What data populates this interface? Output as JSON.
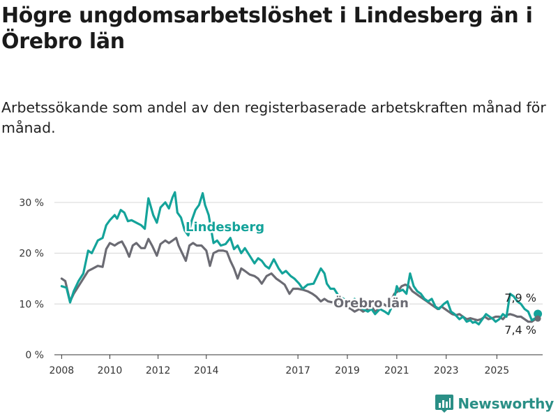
{
  "title": "Högre ungdomsarbetslöshet i Lindesberg än i Örebro län",
  "subtitle": "Arbetssökande som andel av den registerbaserade arbetskraften månad för månad.",
  "brand": "Newsworthy",
  "colors": {
    "lindesberg": "#14a39a",
    "orebro": "#6b6b73",
    "grid": "#d6d6d6",
    "brand": "#2a8f86"
  },
  "chart_data": {
    "type": "line",
    "x_ticks": [
      "2008",
      "2010",
      "2012",
      "2014",
      "2017",
      "2019",
      "2021",
      "2023",
      "2025"
    ],
    "y_ticks": [
      "0 %",
      "10 %",
      "20 %",
      "30 %"
    ],
    "ylim": [
      0,
      33
    ],
    "grid": true,
    "series": [
      {
        "name": "Lindesberg",
        "color": "#14a39a",
        "end_label": "7,9 %",
        "points": [
          [
            2008.0,
            13.5
          ],
          [
            2008.2,
            13.2
          ],
          [
            2008.35,
            10.3
          ],
          [
            2008.5,
            12.5
          ],
          [
            2008.7,
            14.5
          ],
          [
            2008.9,
            16.0
          ],
          [
            2009.1,
            20.5
          ],
          [
            2009.25,
            20.0
          ],
          [
            2009.5,
            22.5
          ],
          [
            2009.7,
            23.0
          ],
          [
            2009.85,
            25.5
          ],
          [
            2010.0,
            26.5
          ],
          [
            2010.2,
            27.5
          ],
          [
            2010.3,
            26.8
          ],
          [
            2010.45,
            28.5
          ],
          [
            2010.6,
            28.0
          ],
          [
            2010.75,
            26.3
          ],
          [
            2010.9,
            26.5
          ],
          [
            2011.1,
            26.0
          ],
          [
            2011.3,
            25.5
          ],
          [
            2011.45,
            24.8
          ],
          [
            2011.6,
            30.8
          ],
          [
            2011.8,
            27.5
          ],
          [
            2011.95,
            26.0
          ],
          [
            2012.1,
            29.0
          ],
          [
            2012.3,
            30.0
          ],
          [
            2012.45,
            28.8
          ],
          [
            2012.6,
            31.0
          ],
          [
            2012.7,
            32.0
          ],
          [
            2012.8,
            28.0
          ],
          [
            2012.95,
            27.0
          ],
          [
            2013.1,
            24.5
          ],
          [
            2013.25,
            23.5
          ],
          [
            2013.4,
            26.5
          ],
          [
            2013.55,
            28.5
          ],
          [
            2013.7,
            29.5
          ],
          [
            2013.85,
            31.8
          ],
          [
            2013.95,
            29.5
          ],
          [
            2014.1,
            27.5
          ],
          [
            2014.3,
            22.0
          ],
          [
            2014.45,
            22.5
          ],
          [
            2014.6,
            21.5
          ],
          [
            2014.8,
            21.8
          ],
          [
            2015.0,
            23.0
          ],
          [
            2015.15,
            20.8
          ],
          [
            2015.3,
            21.5
          ],
          [
            2015.45,
            20.0
          ],
          [
            2015.6,
            21.0
          ],
          [
            2015.8,
            19.5
          ],
          [
            2016.0,
            18.0
          ],
          [
            2016.15,
            19.0
          ],
          [
            2016.3,
            18.5
          ],
          [
            2016.45,
            17.5
          ],
          [
            2016.6,
            17.0
          ],
          [
            2016.8,
            18.8
          ],
          [
            2017.0,
            17.0
          ],
          [
            2017.15,
            16.0
          ],
          [
            2017.3,
            16.5
          ],
          [
            2017.5,
            15.5
          ],
          [
            2017.65,
            15.0
          ],
          [
            2017.85,
            14.0
          ],
          [
            2018.0,
            13.0
          ],
          [
            2018.2,
            13.8
          ],
          [
            2018.45,
            14.0
          ],
          [
            2018.6,
            15.5
          ],
          [
            2018.75,
            17.0
          ],
          [
            2018.9,
            16.0
          ],
          [
            2019.0,
            14.0
          ],
          [
            2019.15,
            13.0
          ],
          [
            2019.3,
            13.0
          ],
          [
            2019.5,
            11.5
          ],
          [
            2019.7,
            11.0
          ],
          [
            2019.85,
            10.5
          ],
          [
            2020.0,
            10.0
          ],
          [
            2020.15,
            11.0
          ],
          [
            2020.35,
            9.5
          ],
          [
            2020.5,
            9.0
          ],
          [
            2020.7,
            8.5
          ],
          [
            2020.85,
            9.0
          ],
          [
            2021.0,
            8.0
          ],
          [
            2021.2,
            9.0
          ],
          [
            2021.4,
            8.5
          ],
          [
            2021.55,
            8.0
          ],
          [
            2021.75,
            10.0
          ],
          [
            2021.9,
            13.5
          ],
          [
            2022.0,
            12.5
          ],
          [
            2022.15,
            12.8
          ],
          [
            2022.3,
            12.0
          ],
          [
            2022.45,
            16.0
          ],
          [
            2022.6,
            13.5
          ],
          [
            2022.75,
            12.5
          ],
          [
            2022.9,
            12.0
          ],
          [
            2023.05,
            11.0
          ],
          [
            2023.2,
            10.5
          ],
          [
            2023.35,
            11.0
          ],
          [
            2023.5,
            9.5
          ],
          [
            2023.65,
            9.0
          ],
          [
            2023.85,
            10.0
          ],
          [
            2024.0,
            10.5
          ],
          [
            2024.15,
            8.5
          ],
          [
            2024.3,
            8.0
          ],
          [
            2024.5,
            7.0
          ],
          [
            2024.65,
            7.5
          ],
          [
            2024.8,
            6.5
          ],
          [
            2024.95,
            6.8
          ],
          [
            2025.05,
            6.3
          ],
          [
            2025.15,
            6.5
          ],
          [
            2025.3,
            6.0
          ],
          [
            2025.45,
            7.0
          ],
          [
            2025.6,
            8.0
          ],
          [
            2025.75,
            7.5
          ],
          [
            2025.9,
            7.0
          ],
          [
            2026.0,
            6.5
          ],
          [
            2026.15,
            7.0
          ],
          [
            2026.3,
            8.0
          ],
          [
            2026.45,
            7.5
          ],
          [
            2026.6,
            12.0
          ],
          [
            2026.75,
            11.5
          ],
          [
            2026.9,
            10.5
          ],
          [
            2027.05,
            10.0
          ],
          [
            2027.2,
            9.0
          ],
          [
            2027.35,
            8.5
          ],
          [
            2027.5,
            6.8
          ],
          [
            2027.65,
            7.2
          ],
          [
            2027.75,
            7.9
          ]
        ]
      },
      {
        "name": "Örebro län",
        "color": "#6b6b73",
        "end_label": "7,4 %",
        "points": [
          [
            2008.0,
            15.0
          ],
          [
            2008.15,
            14.5
          ],
          [
            2008.35,
            10.5
          ],
          [
            2008.5,
            12.0
          ],
          [
            2008.7,
            13.5
          ],
          [
            2008.9,
            15.0
          ],
          [
            2009.1,
            16.5
          ],
          [
            2009.3,
            17.0
          ],
          [
            2009.5,
            17.5
          ],
          [
            2009.7,
            17.3
          ],
          [
            2009.85,
            20.8
          ],
          [
            2010.0,
            22.0
          ],
          [
            2010.2,
            21.5
          ],
          [
            2010.35,
            22.0
          ],
          [
            2010.5,
            22.3
          ],
          [
            2010.65,
            21.0
          ],
          [
            2010.8,
            19.3
          ],
          [
            2010.95,
            21.5
          ],
          [
            2011.1,
            22.0
          ],
          [
            2011.3,
            21.0
          ],
          [
            2011.45,
            21.0
          ],
          [
            2011.6,
            22.8
          ],
          [
            2011.75,
            21.5
          ],
          [
            2011.95,
            19.5
          ],
          [
            2012.1,
            21.8
          ],
          [
            2012.3,
            22.5
          ],
          [
            2012.45,
            22.0
          ],
          [
            2012.6,
            22.5
          ],
          [
            2012.75,
            23.0
          ],
          [
            2012.85,
            21.5
          ],
          [
            2013.0,
            20.0
          ],
          [
            2013.15,
            18.5
          ],
          [
            2013.3,
            21.5
          ],
          [
            2013.45,
            22.0
          ],
          [
            2013.6,
            21.5
          ],
          [
            2013.8,
            21.5
          ],
          [
            2014.0,
            20.5
          ],
          [
            2014.15,
            17.5
          ],
          [
            2014.3,
            20.0
          ],
          [
            2014.5,
            20.5
          ],
          [
            2014.7,
            20.5
          ],
          [
            2014.85,
            20.3
          ],
          [
            2015.0,
            18.5
          ],
          [
            2015.15,
            17.0
          ],
          [
            2015.3,
            15.0
          ],
          [
            2015.45,
            17.0
          ],
          [
            2015.6,
            16.5
          ],
          [
            2015.8,
            15.8
          ],
          [
            2016.0,
            15.5
          ],
          [
            2016.15,
            15.0
          ],
          [
            2016.3,
            14.0
          ],
          [
            2016.5,
            15.5
          ],
          [
            2016.7,
            16.0
          ],
          [
            2016.9,
            15.0
          ],
          [
            2017.05,
            14.5
          ],
          [
            2017.25,
            13.8
          ],
          [
            2017.45,
            12.0
          ],
          [
            2017.6,
            13.0
          ],
          [
            2017.8,
            13.0
          ],
          [
            2018.0,
            12.8
          ],
          [
            2018.2,
            12.5
          ],
          [
            2018.4,
            12.0
          ],
          [
            2018.55,
            11.5
          ],
          [
            2018.75,
            10.5
          ],
          [
            2018.9,
            11.0
          ],
          [
            2019.05,
            10.5
          ],
          [
            2019.25,
            10.3
          ],
          [
            2019.45,
            10.0
          ],
          [
            2019.6,
            9.5
          ],
          [
            2019.8,
            9.5
          ],
          [
            2020.0,
            9.0
          ],
          [
            2020.15,
            8.5
          ],
          [
            2020.35,
            9.0
          ],
          [
            2020.5,
            8.5
          ],
          [
            2020.7,
            9.0
          ],
          [
            2020.85,
            9.5
          ],
          [
            2021.0,
            8.5
          ],
          [
            2021.15,
            9.0
          ],
          [
            2021.35,
            10.0
          ],
          [
            2021.5,
            9.5
          ],
          [
            2021.65,
            10.5
          ],
          [
            2021.8,
            12.0
          ],
          [
            2021.95,
            12.5
          ],
          [
            2022.1,
            13.5
          ],
          [
            2022.25,
            13.8
          ],
          [
            2022.4,
            13.5
          ],
          [
            2022.55,
            12.5
          ],
          [
            2022.7,
            12.0
          ],
          [
            2022.85,
            11.5
          ],
          [
            2023.0,
            11.0
          ],
          [
            2023.15,
            10.5
          ],
          [
            2023.3,
            10.0
          ],
          [
            2023.45,
            9.5
          ],
          [
            2023.6,
            9.0
          ],
          [
            2023.75,
            9.5
          ],
          [
            2023.9,
            9.0
          ],
          [
            2024.05,
            8.5
          ],
          [
            2024.2,
            8.0
          ],
          [
            2024.35,
            7.8
          ],
          [
            2024.5,
            8.0
          ],
          [
            2024.65,
            7.5
          ],
          [
            2024.8,
            7.0
          ],
          [
            2024.95,
            7.2
          ],
          [
            2025.1,
            7.0
          ],
          [
            2025.25,
            6.8
          ],
          [
            2025.4,
            7.0
          ],
          [
            2025.55,
            7.5
          ],
          [
            2025.7,
            7.0
          ],
          [
            2025.85,
            7.2
          ],
          [
            2026.0,
            7.5
          ],
          [
            2026.15,
            7.5
          ],
          [
            2026.3,
            7.0
          ],
          [
            2026.45,
            7.8
          ],
          [
            2026.6,
            8.0
          ],
          [
            2026.75,
            7.8
          ],
          [
            2026.9,
            7.5
          ],
          [
            2027.05,
            7.5
          ],
          [
            2027.2,
            7.0
          ],
          [
            2027.35,
            6.5
          ],
          [
            2027.5,
            6.5
          ],
          [
            2027.65,
            7.0
          ],
          [
            2027.75,
            7.4
          ]
        ]
      }
    ]
  }
}
